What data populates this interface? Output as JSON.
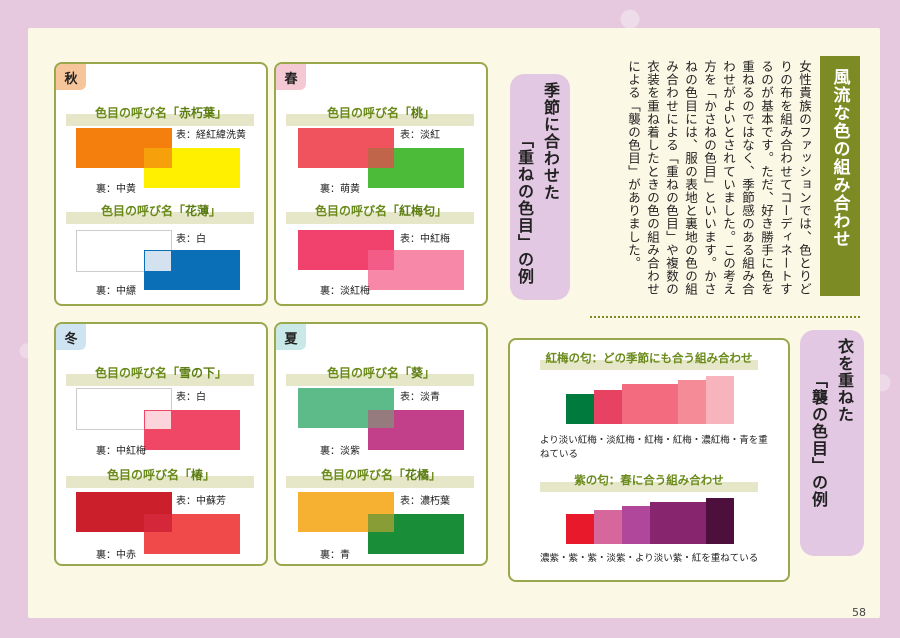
{
  "panels": {
    "aki": {
      "season": "秋",
      "c1": {
        "name": "色目の呼び名「",
        "hl": "赤朽葉",
        "end": "」",
        "omote": "表：経紅緯洗黄",
        "ura": "裏：中黄"
      },
      "c2": {
        "name": "色目の呼び名「",
        "hl": "花薄",
        "end": "」",
        "omote": "表：白",
        "ura": "裏：中縹"
      }
    },
    "haru": {
      "season": "春",
      "c1": {
        "name": "色目の呼び名「",
        "hl": "桃",
        "end": "」",
        "omote": "表：淡紅",
        "ura": "裏：萌黄"
      },
      "c2": {
        "name": "色目の呼び名「",
        "hl": "紅梅匂",
        "end": "」",
        "omote": "表：中紅梅",
        "ura": "裏：淡紅梅"
      }
    },
    "fuyu": {
      "season": "冬",
      "c1": {
        "name": "色目の呼び名「",
        "hl": "雪の下",
        "end": "」",
        "omote": "表：白",
        "ura": "裏：中紅梅"
      },
      "c2": {
        "name": "色目の呼び名「",
        "hl": "椿",
        "end": "」",
        "omote": "表：中蘇芳",
        "ura": "裏：中赤"
      }
    },
    "natsu": {
      "season": "夏",
      "c1": {
        "name": "色目の呼び名「",
        "hl": "葵",
        "end": "」",
        "omote": "表：淡青",
        "ura": "裏：淡紫"
      },
      "c2": {
        "name": "色目の呼び名「",
        "hl": "花橘",
        "end": "」",
        "omote": "表：濃朽葉",
        "ura": "裏：青"
      }
    }
  },
  "article": {
    "title": "風流な色の組み合わせ",
    "body": "女性貴族のファッションでは、色とりどりの布を組み合わせてコーディネートするのが基本です。ただ、好き勝手に色を重ねるのではなく、季節感のある組み合わせがよいとされていました。この考え方を「かさねの色目」といいます。かさねの色目には、服の表地と裏地の色の組み合わせによる「重ねの色目」や複数の衣装を重ね着したときの色の組み合わせによる「襲の色目」がありました。",
    "sub1_a": "季節に合わせた",
    "sub1_b": "「重ねの色目」の例",
    "sub2_a": "衣を重ねた",
    "sub2_b": "「襲の色目」の例"
  },
  "gradients": {
    "g1": {
      "title": "紅梅の匂：どの季節にも合う組み合わせ",
      "desc": "より淡い紅梅・淡紅梅・紅梅・紅梅・濃紅梅・青を重ねている"
    },
    "g2": {
      "title": "紫の匂：春に合う組み合わせ",
      "desc": "濃紫・紫・紫・淡紫・より淡い紫・紅を重ねている"
    }
  },
  "page_number": "58",
  "colors": {
    "accent_green": "#7c8b24",
    "frame_green": "#9aa84d"
  }
}
